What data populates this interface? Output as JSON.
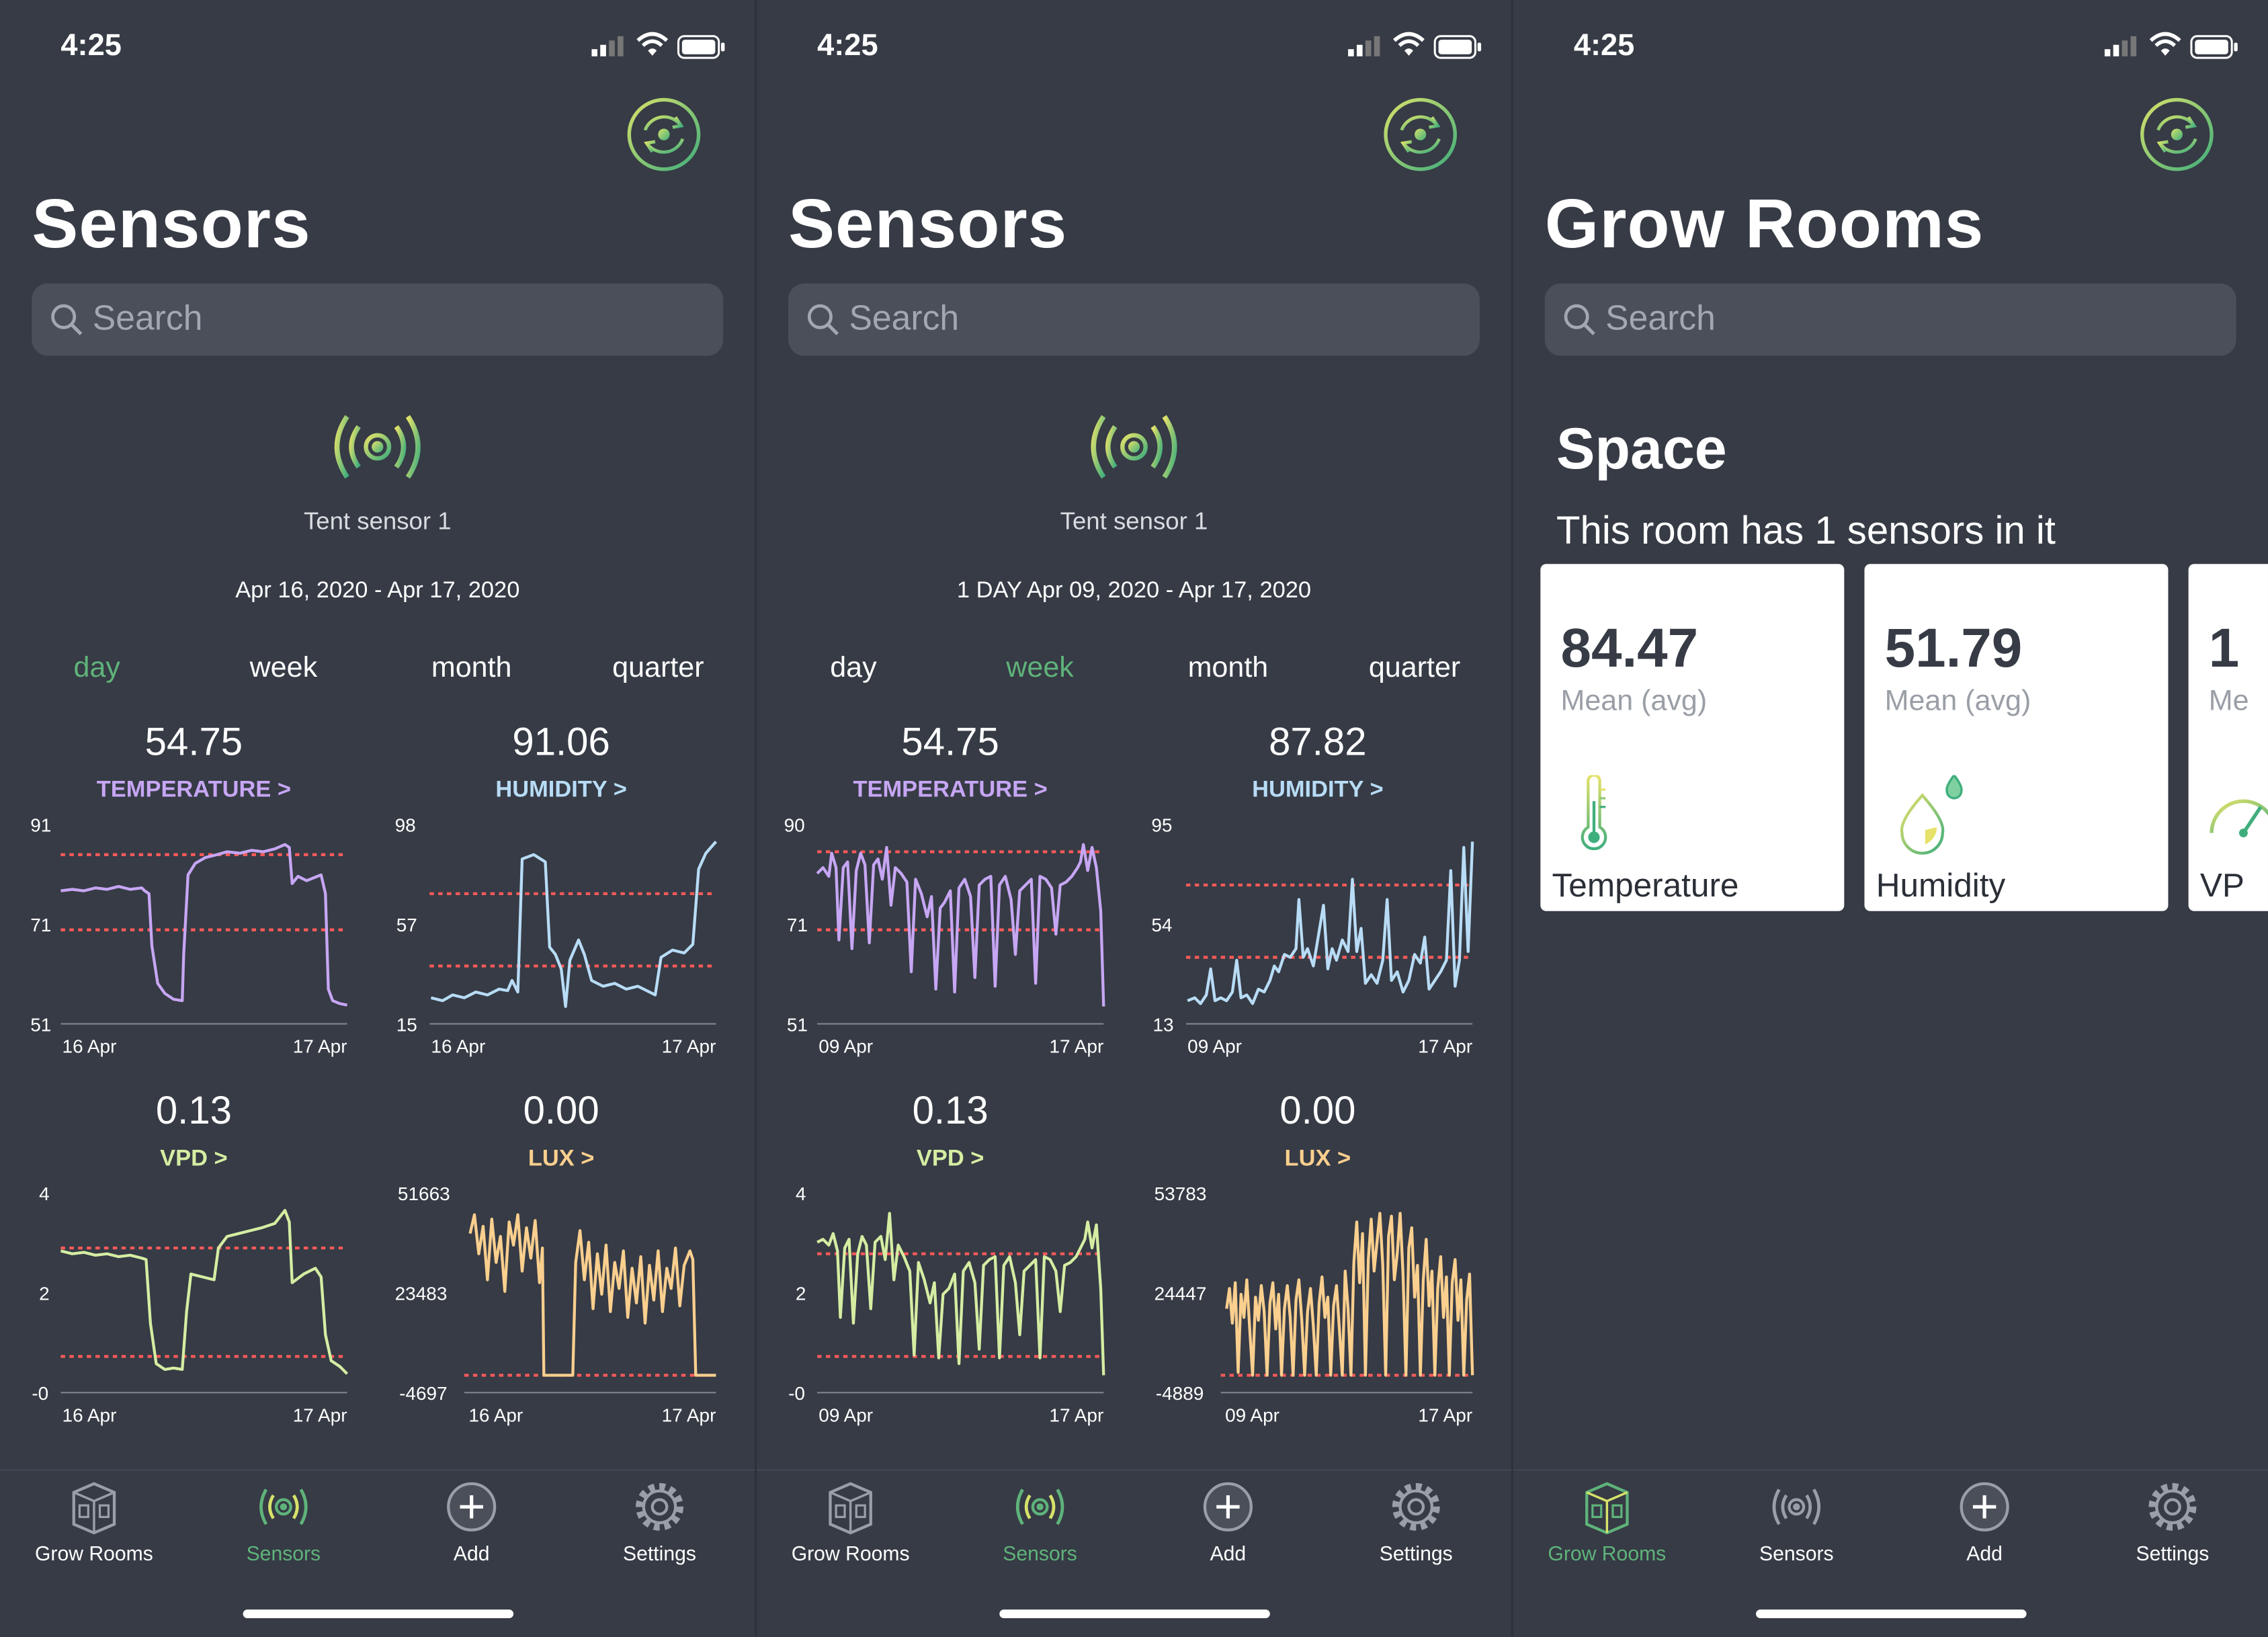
{
  "status": {
    "time": "4:25"
  },
  "colors": {
    "accent": "#5fb37a",
    "temperature": "#c7a6f4",
    "humidity": "#b8dcf6",
    "vpd": "#d5eda2",
    "lux": "#fbcf8e",
    "threshold": "#ff5a5a"
  },
  "tabs": [
    "Grow Rooms",
    "Sensors",
    "Add",
    "Settings"
  ],
  "periods": [
    "day",
    "week",
    "month",
    "quarter"
  ],
  "screens": [
    {
      "title": "Sensors",
      "search_placeholder": "Search",
      "sensor_name": "Tent sensor 1",
      "date_range": "Apr 16, 2020 - Apr 17, 2020",
      "active_period": "day",
      "active_tab": "Sensors",
      "metrics": [
        {
          "value": "54.75",
          "label": "TEMPERATURE >",
          "y_ticks": [
            "91",
            "71",
            "51"
          ],
          "x_ticks": [
            "16 Apr",
            "17 Apr"
          ]
        },
        {
          "value": "91.06",
          "label": "HUMIDITY >",
          "y_ticks": [
            "98",
            "57",
            "15"
          ],
          "x_ticks": [
            "16 Apr",
            "17 Apr"
          ]
        },
        {
          "value": "0.13",
          "label": "VPD >",
          "y_ticks": [
            "4",
            "2",
            "-0"
          ],
          "x_ticks": [
            "16 Apr",
            "17 Apr"
          ]
        },
        {
          "value": "0.00",
          "label": "LUX >",
          "y_ticks": [
            "51663",
            "23483",
            "-4697"
          ],
          "x_ticks": [
            "16 Apr",
            "17 Apr"
          ]
        }
      ]
    },
    {
      "title": "Sensors",
      "search_placeholder": "Search",
      "sensor_name": "Tent sensor 1",
      "date_range": "1 DAY Apr 09, 2020 - Apr 17, 2020",
      "active_period": "week",
      "active_tab": "Sensors",
      "metrics": [
        {
          "value": "54.75",
          "label": "TEMPERATURE >",
          "y_ticks": [
            "90",
            "71",
            "51"
          ],
          "x_ticks": [
            "09 Apr",
            "17 Apr"
          ]
        },
        {
          "value": "87.82",
          "label": "HUMIDITY >",
          "y_ticks": [
            "95",
            "54",
            "13"
          ],
          "x_ticks": [
            "09 Apr",
            "17 Apr"
          ]
        },
        {
          "value": "0.13",
          "label": "VPD >",
          "y_ticks": [
            "4",
            "2",
            "-0"
          ],
          "x_ticks": [
            "09 Apr",
            "17 Apr"
          ]
        },
        {
          "value": "0.00",
          "label": "LUX >",
          "y_ticks": [
            "53783",
            "24447",
            "-4889"
          ],
          "x_ticks": [
            "09 Apr",
            "17 Apr"
          ]
        }
      ]
    },
    {
      "title": "Grow Rooms",
      "search_placeholder": "Search",
      "active_tab": "Grow Rooms",
      "room": {
        "name": "Space",
        "subtitle": "This room has 1 sensors in it",
        "cards": [
          {
            "value": "84.47",
            "mean_label": "Mean (avg)",
            "label": "Temperature"
          },
          {
            "value": "51.79",
            "mean_label": "Mean (avg)",
            "label": "Humidity"
          },
          {
            "value": "1",
            "mean_label": "Me",
            "label": "VP"
          }
        ]
      }
    }
  ]
}
